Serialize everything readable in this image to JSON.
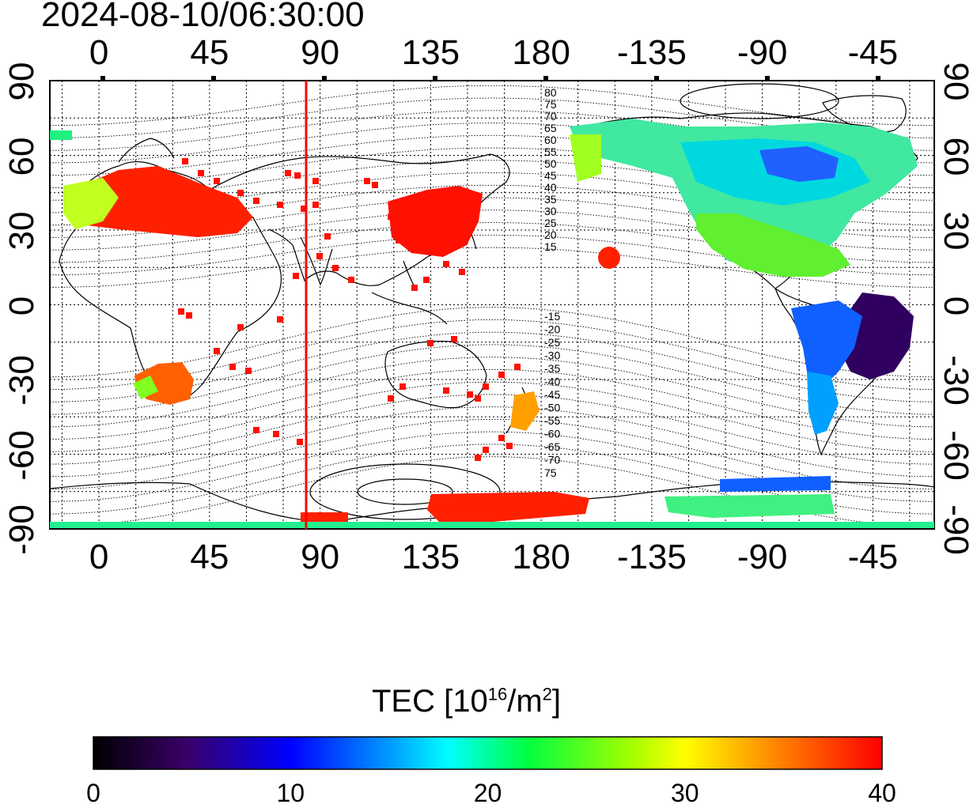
{
  "title": "2024-08-10/06:30:00",
  "map": {
    "x_ticks_top": [
      "0",
      "45",
      "90",
      "135",
      "180",
      "-135",
      "-90",
      "-45"
    ],
    "x_ticks_bottom": [
      "0",
      "45",
      "90",
      "135",
      "180",
      "-135",
      "-90",
      "-45"
    ],
    "y_ticks_left": [
      "90",
      "60",
      "30",
      "0",
      "-30",
      "-60",
      "-90"
    ],
    "y_ticks_right": [
      "90",
      "60",
      "30",
      "0",
      "-30",
      "-60",
      "-90"
    ],
    "lon_range": [
      -20,
      340
    ],
    "lat_range": [
      -90,
      90
    ],
    "grid": true,
    "marker_line_color": "#ff0000",
    "contour_labels_north": [
      "80",
      "75",
      "70",
      "65",
      "60",
      "55",
      "50",
      "45",
      "40",
      "35",
      "30",
      "25",
      "20",
      "15"
    ],
    "contour_labels_south": [
      "-15",
      "-20",
      "-25",
      "-30",
      "-35",
      "-40",
      "-45",
      "-50",
      "-55",
      "-60",
      "-65",
      "-70",
      "75"
    ]
  },
  "colorbar": {
    "label_main": "TEC  [10",
    "label_sup1": "16",
    "label_mid": "/m",
    "label_sup2": "2",
    "label_end": "]",
    "ticks": [
      "0",
      "10",
      "20",
      "30",
      "40"
    ],
    "range": [
      0,
      40
    ],
    "colors": [
      "#000000",
      "#4b0082",
      "#0000ff",
      "#00ffff",
      "#00ff00",
      "#ffff00",
      "#ff8000",
      "#ff0000"
    ]
  }
}
